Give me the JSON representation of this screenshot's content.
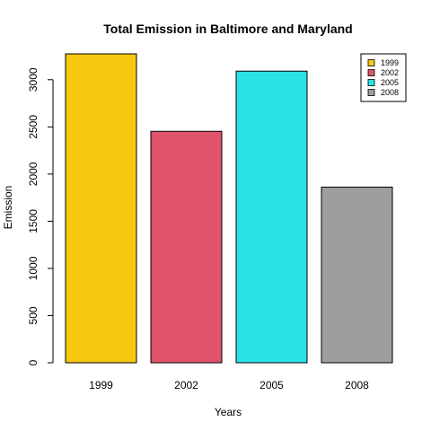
{
  "chart_data": {
    "type": "bar",
    "title": "Total Emission in Baltimore and Maryland",
    "xlabel": "Years",
    "ylabel": "Emission",
    "categories": [
      "1999",
      "2002",
      "2005",
      "2008"
    ],
    "values": [
      3274,
      2453,
      3091,
      1862
    ],
    "colors": [
      "#F5C710",
      "#DF536B",
      "#28E2E5",
      "#9E9E9E"
    ],
    "ylim": [
      0,
      3274
    ],
    "yticks": [
      0,
      500,
      1000,
      1500,
      2000,
      2500,
      3000
    ],
    "grid": false,
    "legend": {
      "position": "top-right",
      "entries": [
        "1999",
        "2002",
        "2005",
        "2008"
      ]
    }
  }
}
